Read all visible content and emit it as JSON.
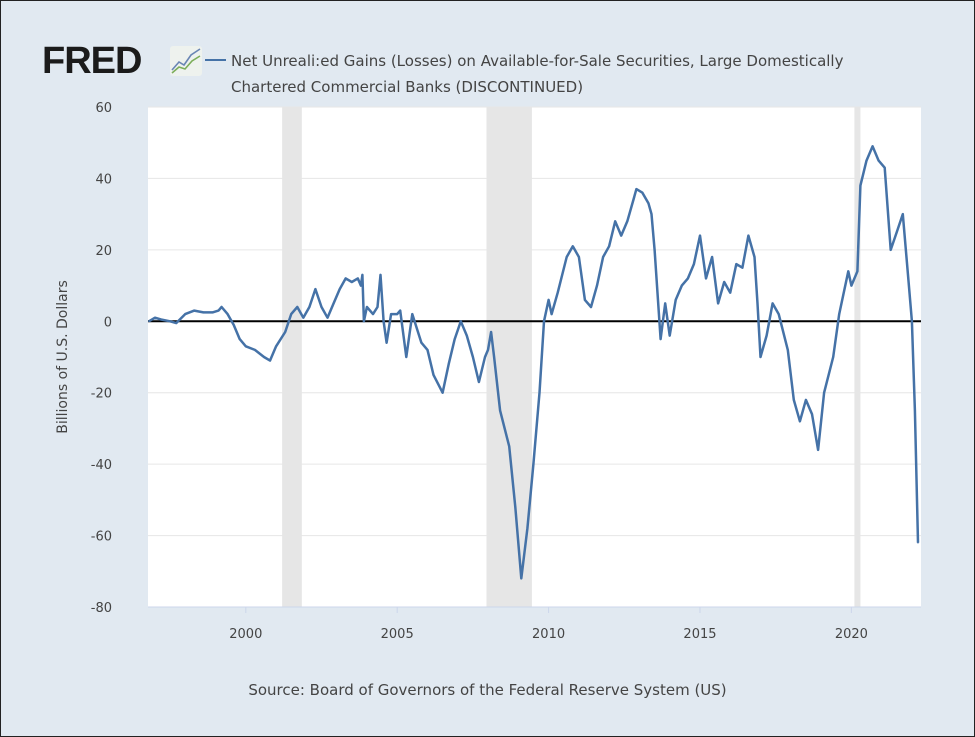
{
  "header": {
    "logo_text": "FRED",
    "title_line1": "Net Unreali:ed Gains (Losses) on Available-for-Sale Securities, Large Domestically",
    "title_line2": "Chartered Commercial Banks (DISCONTINUED)"
  },
  "source": "Source: Board of Governors of the Federal Reserve System (US)",
  "colors": {
    "series": "#4572a7",
    "recession": "#e6e6e6",
    "background": "#e1e9f1"
  },
  "chart_data": {
    "type": "line",
    "title": "Net Unrealized Gains (Losses) on Available-for-Sale Securities, Large Domestically Chartered Commercial Banks (DISCONTINUED)",
    "xlabel": "",
    "ylabel": "Billions of U.S. Dollars",
    "xlim": [
      1996.77,
      2022.3
    ],
    "ylim": [
      -80,
      60
    ],
    "yticks": [
      "60",
      "40",
      "20",
      "0",
      "-20",
      "-40",
      "-60",
      "-80"
    ],
    "ytick_values": [
      60,
      40,
      20,
      0,
      -20,
      -40,
      -60,
      -80
    ],
    "xticks": [
      "2000",
      "2005",
      "2010",
      "2015",
      "2020"
    ],
    "xtick_values": [
      2000,
      2005,
      2010,
      2015,
      2020
    ],
    "grid": true,
    "recessions": [
      [
        2001.2,
        2001.85
      ],
      [
        2007.95,
        2009.45
      ],
      [
        2020.1,
        2020.3
      ]
    ],
    "series": [
      {
        "name": "Net Unrealized Gains (Losses) on Available-for-Sale Securities, Large Domestically Chartered Commercial Banks",
        "points": [
          [
            1996.8,
            0
          ],
          [
            1997.0,
            1
          ],
          [
            1997.2,
            0.5
          ],
          [
            1997.5,
            0
          ],
          [
            1997.7,
            -0.5
          ],
          [
            1998.0,
            2
          ],
          [
            1998.3,
            3
          ],
          [
            1998.6,
            2.5
          ],
          [
            1998.9,
            2.5
          ],
          [
            1999.1,
            3
          ],
          [
            1999.2,
            4
          ],
          [
            1999.4,
            2
          ],
          [
            1999.6,
            -1
          ],
          [
            1999.8,
            -5
          ],
          [
            2000.0,
            -7
          ],
          [
            2000.3,
            -8
          ],
          [
            2000.6,
            -10
          ],
          [
            2000.8,
            -11
          ],
          [
            2001.0,
            -7
          ],
          [
            2001.3,
            -3
          ],
          [
            2001.5,
            2
          ],
          [
            2001.7,
            4
          ],
          [
            2001.9,
            1
          ],
          [
            2002.1,
            4
          ],
          [
            2002.3,
            9
          ],
          [
            2002.5,
            4
          ],
          [
            2002.7,
            1
          ],
          [
            2002.9,
            5
          ],
          [
            2003.1,
            9
          ],
          [
            2003.3,
            12
          ],
          [
            2003.5,
            11
          ],
          [
            2003.7,
            12
          ],
          [
            2003.8,
            10
          ],
          [
            2003.85,
            13
          ],
          [
            2003.9,
            0
          ],
          [
            2004.0,
            4
          ],
          [
            2004.2,
            2
          ],
          [
            2004.35,
            4
          ],
          [
            2004.45,
            13
          ],
          [
            2004.55,
            0
          ],
          [
            2004.65,
            -6
          ],
          [
            2004.8,
            2
          ],
          [
            2005.0,
            2
          ],
          [
            2005.1,
            3
          ],
          [
            2005.3,
            -10
          ],
          [
            2005.5,
            2
          ],
          [
            2005.8,
            -6
          ],
          [
            2006.0,
            -8
          ],
          [
            2006.2,
            -15
          ],
          [
            2006.5,
            -20
          ],
          [
            2006.7,
            -12
          ],
          [
            2006.9,
            -5
          ],
          [
            2007.1,
            0
          ],
          [
            2007.3,
            -4
          ],
          [
            2007.5,
            -10
          ],
          [
            2007.7,
            -17
          ],
          [
            2007.9,
            -10
          ],
          [
            2008.0,
            -8
          ],
          [
            2008.1,
            -3
          ],
          [
            2008.2,
            -10
          ],
          [
            2008.4,
            -25
          ],
          [
            2008.7,
            -35
          ],
          [
            2008.9,
            -52
          ],
          [
            2009.1,
            -72
          ],
          [
            2009.3,
            -58
          ],
          [
            2009.5,
            -40
          ],
          [
            2009.7,
            -20
          ],
          [
            2009.85,
            0
          ],
          [
            2010.0,
            6
          ],
          [
            2010.1,
            2
          ],
          [
            2010.3,
            8
          ],
          [
            2010.6,
            18
          ],
          [
            2010.8,
            21
          ],
          [
            2011.0,
            18
          ],
          [
            2011.2,
            6
          ],
          [
            2011.4,
            4
          ],
          [
            2011.6,
            10
          ],
          [
            2011.8,
            18
          ],
          [
            2012.0,
            21
          ],
          [
            2012.2,
            28
          ],
          [
            2012.4,
            24
          ],
          [
            2012.6,
            28
          ],
          [
            2012.8,
            34
          ],
          [
            2012.9,
            37
          ],
          [
            2013.1,
            36
          ],
          [
            2013.3,
            33
          ],
          [
            2013.4,
            30
          ],
          [
            2013.5,
            20
          ],
          [
            2013.7,
            -5
          ],
          [
            2013.85,
            5
          ],
          [
            2014.0,
            -4
          ],
          [
            2014.2,
            6
          ],
          [
            2014.4,
            10
          ],
          [
            2014.6,
            12
          ],
          [
            2014.8,
            16
          ],
          [
            2015.0,
            24
          ],
          [
            2015.2,
            12
          ],
          [
            2015.4,
            18
          ],
          [
            2015.6,
            5
          ],
          [
            2015.8,
            11
          ],
          [
            2016.0,
            8
          ],
          [
            2016.2,
            16
          ],
          [
            2016.4,
            15
          ],
          [
            2016.6,
            24
          ],
          [
            2016.8,
            18
          ],
          [
            2016.9,
            5
          ],
          [
            2017.0,
            -10
          ],
          [
            2017.2,
            -4
          ],
          [
            2017.4,
            5
          ],
          [
            2017.6,
            2
          ],
          [
            2017.9,
            -8
          ],
          [
            2018.1,
            -22
          ],
          [
            2018.3,
            -28
          ],
          [
            2018.5,
            -22
          ],
          [
            2018.7,
            -26
          ],
          [
            2018.9,
            -36
          ],
          [
            2019.1,
            -20
          ],
          [
            2019.4,
            -10
          ],
          [
            2019.6,
            2
          ],
          [
            2019.9,
            14
          ],
          [
            2020.0,
            10
          ],
          [
            2020.2,
            14
          ],
          [
            2020.3,
            38
          ],
          [
            2020.5,
            45
          ],
          [
            2020.7,
            49
          ],
          [
            2020.9,
            45
          ],
          [
            2021.1,
            43
          ],
          [
            2021.3,
            20
          ],
          [
            2021.5,
            25
          ],
          [
            2021.7,
            30
          ],
          [
            2021.9,
            10
          ],
          [
            2022.0,
            0
          ],
          [
            2022.1,
            -25
          ],
          [
            2022.2,
            -62
          ]
        ]
      }
    ]
  }
}
